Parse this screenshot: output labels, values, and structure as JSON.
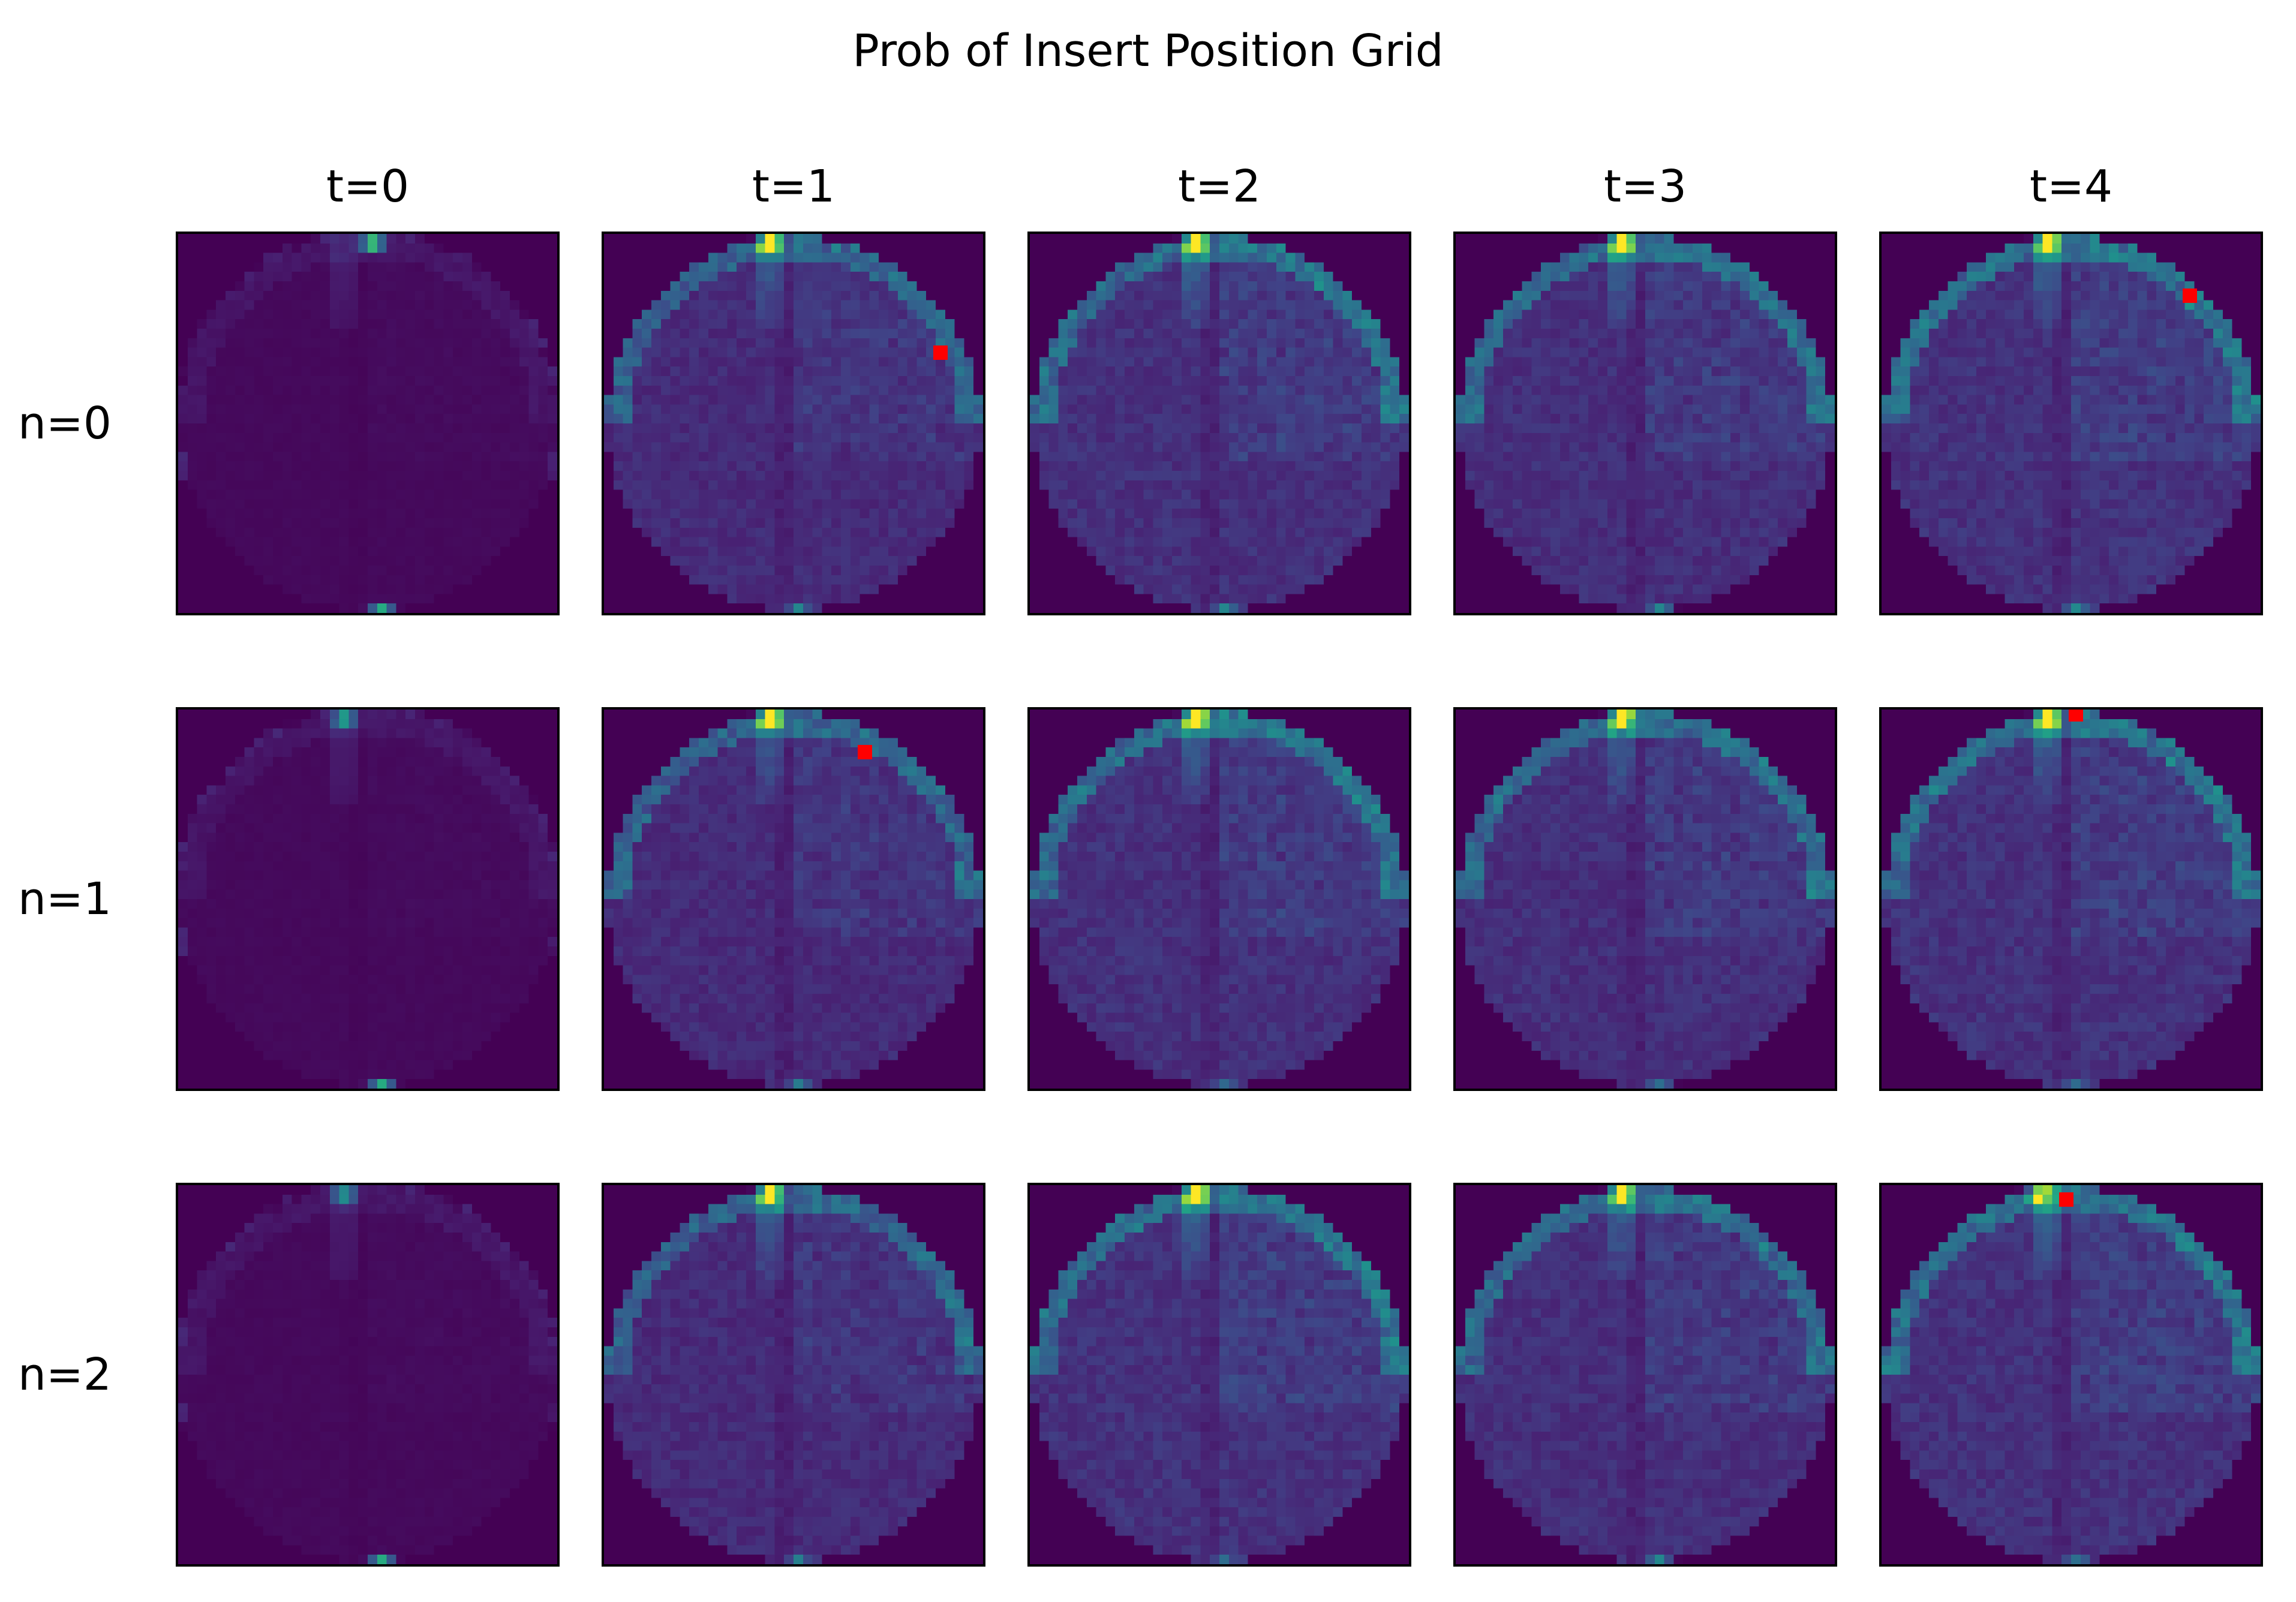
{
  "chart_data": {
    "type": "heatmap",
    "title": "Prob of Insert Position Grid",
    "columns": [
      "t=0",
      "t=1",
      "t=2",
      "t=3",
      "t=4"
    ],
    "rows": [
      "n=0",
      "n=1",
      "n=2"
    ],
    "grid_cells": 40,
    "colormap": "viridis",
    "background_color": "#440154",
    "marker_color": "#ff0000",
    "axes_ticks": false,
    "panels": [
      [
        {
          "col": "t=0",
          "intensity": 0.06,
          "hotspots": [
            [
              20,
              0.5,
              1.0
            ],
            [
              21,
              39.5,
              1.0
            ]
          ],
          "marker": null
        },
        {
          "col": "t=1",
          "intensity": 0.32,
          "hotspots": [
            [
              17,
              0.5,
              1.0
            ],
            [
              20,
              39.5,
              0.6
            ]
          ],
          "marker": [
            35,
            12
          ]
        },
        {
          "col": "t=2",
          "intensity": 0.36,
          "hotspots": [
            [
              17,
              0.5,
              1.0
            ],
            [
              20,
              39.5,
              0.5
            ]
          ],
          "marker": null
        },
        {
          "col": "t=3",
          "intensity": 0.35,
          "hotspots": [
            [
              17,
              0.5,
              1.0
            ],
            [
              21,
              39.5,
              0.5
            ]
          ],
          "marker": null
        },
        {
          "col": "t=4",
          "intensity": 0.37,
          "hotspots": [
            [
              17,
              0.5,
              1.0
            ],
            [
              20,
              39.5,
              0.5
            ]
          ],
          "marker": [
            32,
            6
          ]
        }
      ],
      [
        {
          "col": "t=0",
          "intensity": 0.06,
          "hotspots": [
            [
              17,
              0.5,
              0.7
            ],
            [
              21,
              39.5,
              1.0
            ]
          ],
          "marker": null
        },
        {
          "col": "t=1",
          "intensity": 0.32,
          "hotspots": [
            [
              17,
              0.5,
              1.0
            ],
            [
              20,
              39.5,
              0.5
            ]
          ],
          "marker": [
            27,
            4
          ]
        },
        {
          "col": "t=2",
          "intensity": 0.36,
          "hotspots": [
            [
              17,
              0.5,
              1.0
            ],
            [
              20,
              39.5,
              0.4
            ]
          ],
          "marker": null
        },
        {
          "col": "t=3",
          "intensity": 0.35,
          "hotspots": [
            [
              17,
              0.5,
              1.0
            ],
            [
              21,
              39.5,
              0.4
            ]
          ],
          "marker": null
        },
        {
          "col": "t=4",
          "intensity": 0.37,
          "hotspots": [
            [
              17,
              0.5,
              1.0
            ],
            [
              20,
              39.5,
              0.4
            ]
          ],
          "marker": [
            20,
            0
          ]
        }
      ],
      [
        {
          "col": "t=0",
          "intensity": 0.06,
          "hotspots": [
            [
              17,
              0.5,
              0.6
            ],
            [
              21,
              39.5,
              1.0
            ]
          ],
          "marker": null
        },
        {
          "col": "t=1",
          "intensity": 0.32,
          "hotspots": [
            [
              17,
              0.5,
              1.0
            ],
            [
              20,
              39.5,
              0.5
            ]
          ],
          "marker": null
        },
        {
          "col": "t=2",
          "intensity": 0.37,
          "hotspots": [
            [
              17,
              0.5,
              1.0
            ],
            [
              20,
              39.5,
              0.4
            ]
          ],
          "marker": null
        },
        {
          "col": "t=3",
          "intensity": 0.35,
          "hotspots": [
            [
              17,
              0.5,
              1.0
            ],
            [
              21,
              39.5,
              0.5
            ]
          ],
          "marker": null
        },
        {
          "col": "t=4",
          "intensity": 0.37,
          "hotspots": [
            [
              16,
              0.5,
              1.0
            ],
            [
              20,
              39.5,
              0.4
            ]
          ],
          "marker": [
            19,
            1
          ]
        }
      ]
    ]
  }
}
